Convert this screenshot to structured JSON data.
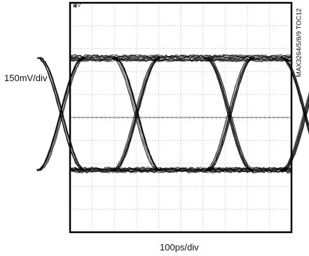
{
  "chart_data": {
    "type": "eye-diagram",
    "ylabel": "150mV/div",
    "xlabel": "100ps/div",
    "figure_id": "MAX3264/5/8/9 TOC12",
    "grid": true,
    "grid_divisions": {
      "x": 10,
      "y": 10
    },
    "y_divisions_span": [
      -5,
      5
    ],
    "levels_div": {
      "high": 2.6,
      "low": -2.3,
      "center": 0.2
    },
    "crossings_time_div": [
      3.0,
      7.2
    ],
    "trace_color": "#000000"
  }
}
